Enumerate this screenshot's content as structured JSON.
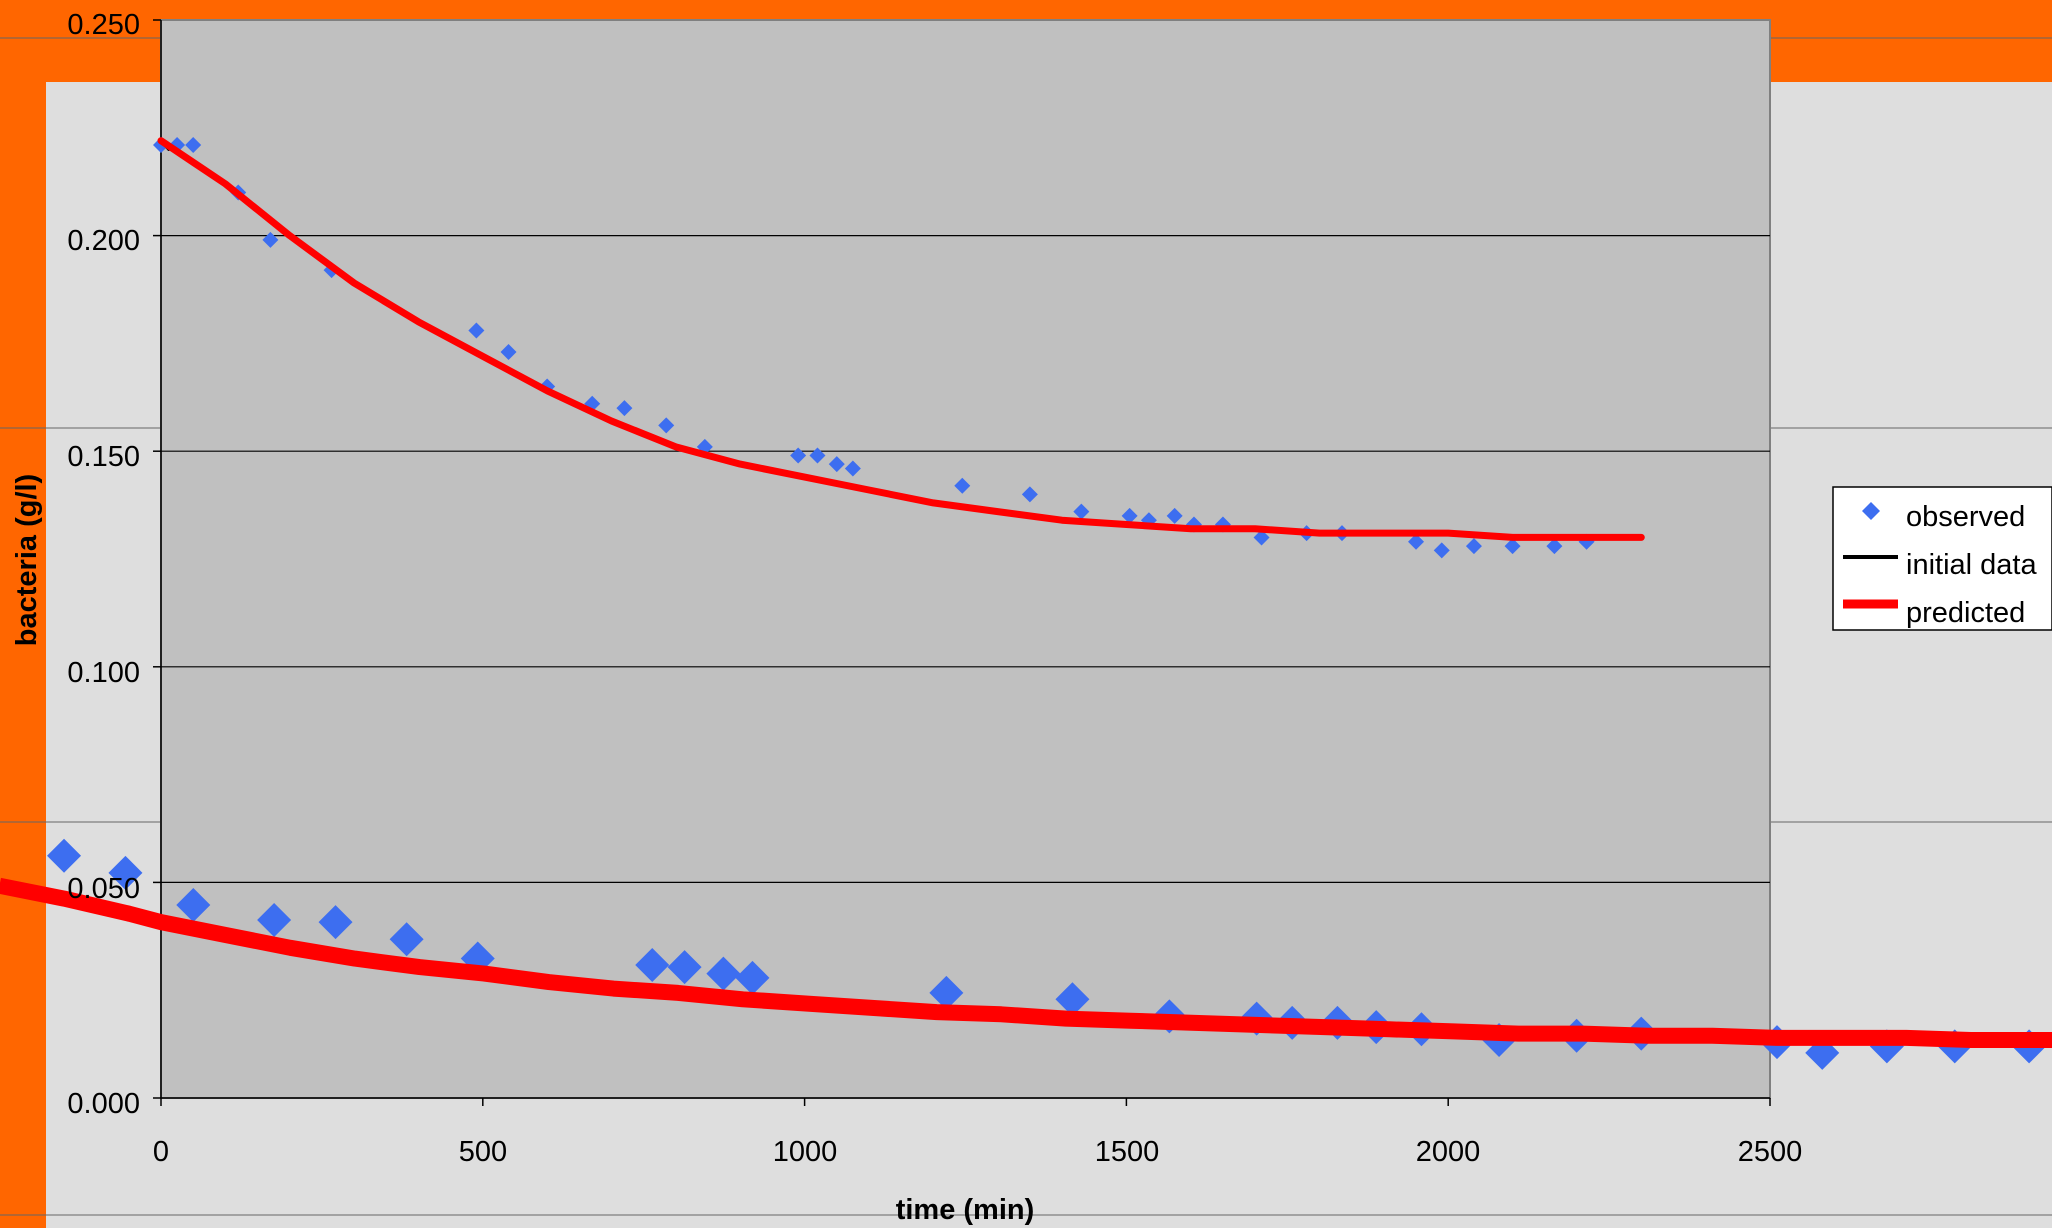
{
  "colors": {
    "frame": "#ff6600",
    "background": "#dedede",
    "plot_area": "#c0c0c0",
    "observed": "#3d6ef0",
    "initial": "#000000",
    "predicted": "#ff0000"
  },
  "chart_data": [
    {
      "type": "scatter",
      "title": "",
      "xlabel": "time (min)",
      "ylabel": "bacteria (g/l)",
      "xlim": [
        0,
        2500
      ],
      "ylim": [
        0,
        0.25
      ],
      "x_ticks": [
        "0",
        "500",
        "1000",
        "1500",
        "2000",
        "2500"
      ],
      "y_ticks": [
        "0.000",
        "0.050",
        "0.100",
        "0.150",
        "0.200",
        "0.250"
      ],
      "grid": true,
      "legend": {
        "position": "right",
        "entries": [
          "observed",
          "initial data",
          "predicted"
        ]
      },
      "series": [
        {
          "name": "observed",
          "kind": "scatter",
          "marker": "diamond",
          "points": [
            [
              0,
              0.221
            ],
            [
              25,
              0.221
            ],
            [
              50,
              0.221
            ],
            [
              120,
              0.21
            ],
            [
              170,
              0.199
            ],
            [
              265,
              0.192
            ],
            [
              490,
              0.178
            ],
            [
              540,
              0.173
            ],
            [
              600,
              0.165
            ],
            [
              670,
              0.161
            ],
            [
              720,
              0.16
            ],
            [
              785,
              0.156
            ],
            [
              845,
              0.151
            ],
            [
              990,
              0.149
            ],
            [
              1020,
              0.149
            ],
            [
              1050,
              0.147
            ],
            [
              1075,
              0.146
            ],
            [
              1245,
              0.142
            ],
            [
              1350,
              0.14
            ],
            [
              1430,
              0.136
            ],
            [
              1505,
              0.135
            ],
            [
              1535,
              0.134
            ],
            [
              1575,
              0.135
            ],
            [
              1605,
              0.133
            ],
            [
              1650,
              0.133
            ],
            [
              1710,
              0.13
            ],
            [
              1780,
              0.131
            ],
            [
              1835,
              0.131
            ],
            [
              1950,
              0.129
            ],
            [
              1990,
              0.127
            ],
            [
              2040,
              0.128
            ],
            [
              2100,
              0.128
            ],
            [
              2165,
              0.128
            ],
            [
              2215,
              0.129
            ]
          ]
        },
        {
          "name": "initial data",
          "kind": "line",
          "points": [
            [
              0,
              0.222
            ],
            [
              12,
              0.22
            ]
          ]
        },
        {
          "name": "predicted",
          "kind": "line",
          "model": "exponential decay toward plateau",
          "points": [
            [
              0,
              0.222
            ],
            [
              50,
              0.217
            ],
            [
              100,
              0.212
            ],
            [
              200,
              0.2
            ],
            [
              300,
              0.189
            ],
            [
              400,
              0.18
            ],
            [
              500,
              0.172
            ],
            [
              600,
              0.164
            ],
            [
              700,
              0.157
            ],
            [
              800,
              0.151
            ],
            [
              900,
              0.147
            ],
            [
              1000,
              0.144
            ],
            [
              1100,
              0.141
            ],
            [
              1200,
              0.138
            ],
            [
              1300,
              0.136
            ],
            [
              1400,
              0.134
            ],
            [
              1500,
              0.133
            ],
            [
              1600,
              0.132
            ],
            [
              1700,
              0.132
            ],
            [
              1800,
              0.131
            ],
            [
              1900,
              0.131
            ],
            [
              2000,
              0.131
            ],
            [
              2100,
              0.13
            ],
            [
              2200,
              0.13
            ],
            [
              2300,
              0.13
            ]
          ]
        }
      ]
    },
    {
      "type": "scatter",
      "title": "",
      "xlabel": "",
      "ylabel": "",
      "grid": true,
      "series": [
        {
          "name": "observed",
          "kind": "scatter",
          "marker": "diamond",
          "points": [
            [
              -150,
              0.114
            ],
            [
              -55,
              0.106
            ],
            [
              50,
              0.091
            ],
            [
              175,
              0.084
            ],
            [
              270,
              0.083
            ],
            [
              380,
              0.075
            ],
            [
              490,
              0.066
            ],
            [
              760,
              0.063
            ],
            [
              810,
              0.062
            ],
            [
              870,
              0.059
            ],
            [
              915,
              0.057
            ],
            [
              1215,
              0.05
            ],
            [
              1410,
              0.047
            ],
            [
              1560,
              0.039
            ],
            [
              1695,
              0.038
            ],
            [
              1750,
              0.036
            ],
            [
              1820,
              0.036
            ],
            [
              1880,
              0.034
            ],
            [
              1950,
              0.033
            ],
            [
              2070,
              0.028
            ],
            [
              2190,
              0.03
            ],
            [
              2290,
              0.031
            ],
            [
              2500,
              0.027
            ],
            [
              2570,
              0.022
            ],
            [
              2670,
              0.025
            ],
            [
              2775,
              0.025
            ],
            [
              2890,
              0.025
            ]
          ]
        },
        {
          "name": "predicted",
          "kind": "line",
          "model": "exponential decay toward plateau",
          "points": [
            [
              -250,
              0.1
            ],
            [
              -150,
              0.094
            ],
            [
              -50,
              0.087
            ],
            [
              0,
              0.083
            ],
            [
              100,
              0.077
            ],
            [
              200,
              0.071
            ],
            [
              300,
              0.066
            ],
            [
              400,
              0.062
            ],
            [
              500,
              0.059
            ],
            [
              600,
              0.055
            ],
            [
              700,
              0.052
            ],
            [
              800,
              0.05
            ],
            [
              900,
              0.047
            ],
            [
              1000,
              0.045
            ],
            [
              1100,
              0.043
            ],
            [
              1200,
              0.041
            ],
            [
              1300,
              0.04
            ],
            [
              1400,
              0.038
            ],
            [
              1500,
              0.037
            ],
            [
              1600,
              0.036
            ],
            [
              1700,
              0.035
            ],
            [
              1800,
              0.034
            ],
            [
              1900,
              0.033
            ],
            [
              2000,
              0.032
            ],
            [
              2100,
              0.031
            ],
            [
              2200,
              0.031
            ],
            [
              2300,
              0.03
            ],
            [
              2400,
              0.03
            ],
            [
              2500,
              0.029
            ],
            [
              2600,
              0.029
            ],
            [
              2700,
              0.029
            ],
            [
              2800,
              0.028
            ],
            [
              2900,
              0.028
            ],
            [
              2950,
              0.028
            ]
          ]
        }
      ]
    }
  ]
}
